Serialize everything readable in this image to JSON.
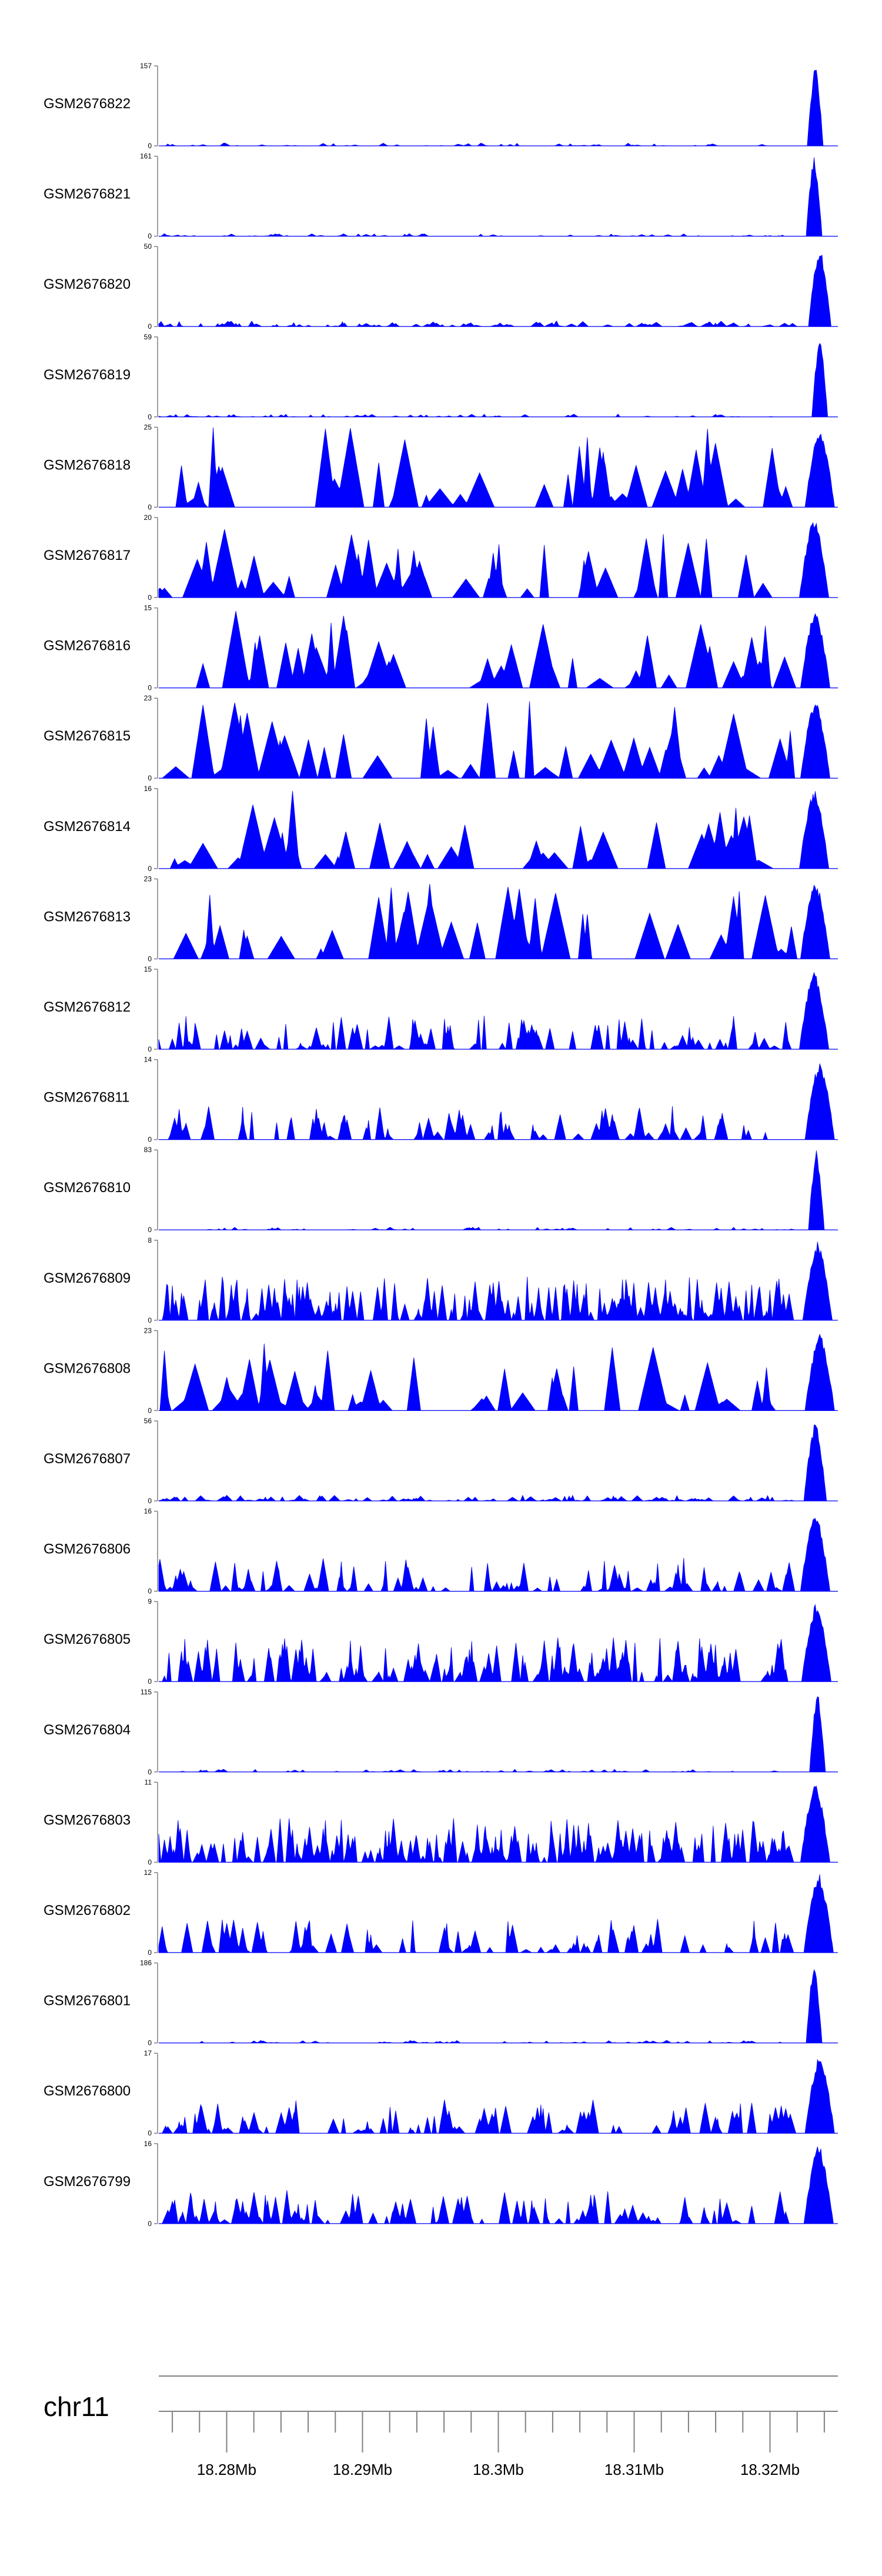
{
  "chart_data": {
    "type": "area",
    "title": "",
    "chromosome": "chr11",
    "fill_color": "#0000ff",
    "axis_color": "#808080",
    "x_range": [
      18275000,
      18325000
    ],
    "x_ticks": [
      18280000,
      18290000,
      18300000,
      18310000,
      18320000
    ],
    "x_tick_labels": [
      "18.28Mb",
      "18.29Mb",
      "18.3Mb",
      "18.31Mb",
      "18.32Mb"
    ],
    "minor_tick_step": 2000,
    "series": [
      {
        "name": "GSM2676822",
        "ymax": 157,
        "ymax_label": "157",
        "ymin_label": "0",
        "profile": "sparse",
        "seed": 22
      },
      {
        "name": "GSM2676821",
        "ymax": 161,
        "ymax_label": "161",
        "ymin_label": "0",
        "profile": "sparse",
        "seed": 21
      },
      {
        "name": "GSM2676820",
        "ymax": 50,
        "ymax_label": "50",
        "ymin_label": "0",
        "profile": "lowdense",
        "seed": 20
      },
      {
        "name": "GSM2676819",
        "ymax": 59,
        "ymax_label": "59",
        "ymin_label": "0",
        "profile": "sparse",
        "seed": 19
      },
      {
        "name": "GSM2676818",
        "ymax": 25,
        "ymax_label": "25",
        "ymin_label": "0",
        "profile": "triangles",
        "seed": 18
      },
      {
        "name": "GSM2676817",
        "ymax": 20,
        "ymax_label": "20",
        "ymin_label": "0",
        "profile": "triangles",
        "seed": 17
      },
      {
        "name": "GSM2676816",
        "ymax": 15,
        "ymax_label": "15",
        "ymin_label": "0",
        "profile": "triangles",
        "seed": 16
      },
      {
        "name": "GSM2676815",
        "ymax": 23,
        "ymax_label": "23",
        "ymin_label": "0",
        "profile": "triangles",
        "seed": 15
      },
      {
        "name": "GSM2676814",
        "ymax": 16,
        "ymax_label": "16",
        "ymin_label": "0",
        "profile": "triangles",
        "seed": 14
      },
      {
        "name": "GSM2676813",
        "ymax": 23,
        "ymax_label": "23",
        "ymin_label": "0",
        "profile": "triangles",
        "seed": 13
      },
      {
        "name": "GSM2676812",
        "ymax": 15,
        "ymax_label": "15",
        "ymin_label": "0",
        "profile": "medium",
        "seed": 12
      },
      {
        "name": "GSM2676811",
        "ymax": 14,
        "ymax_label": "14",
        "ymin_label": "0",
        "profile": "medium",
        "seed": 11
      },
      {
        "name": "GSM2676810",
        "ymax": 83,
        "ymax_label": "83",
        "ymin_label": "0",
        "profile": "sparse",
        "seed": 10
      },
      {
        "name": "GSM2676809",
        "ymax": 8,
        "ymax_label": "8",
        "ymin_label": "0",
        "profile": "dense",
        "seed": 9
      },
      {
        "name": "GSM2676808",
        "ymax": 23,
        "ymax_label": "23",
        "ymin_label": "0",
        "profile": "triangles",
        "seed": 8
      },
      {
        "name": "GSM2676807",
        "ymax": 56,
        "ymax_label": "56",
        "ymin_label": "0",
        "profile": "lowdense",
        "seed": 7
      },
      {
        "name": "GSM2676806",
        "ymax": 16,
        "ymax_label": "16",
        "ymin_label": "0",
        "profile": "medium",
        "seed": 6
      },
      {
        "name": "GSM2676805",
        "ymax": 9,
        "ymax_label": "9",
        "ymin_label": "0",
        "profile": "dense",
        "seed": 5
      },
      {
        "name": "GSM2676804",
        "ymax": 115,
        "ymax_label": "115",
        "ymin_label": "0",
        "profile": "sparse",
        "seed": 4
      },
      {
        "name": "GSM2676803",
        "ymax": 11,
        "ymax_label": "11",
        "ymin_label": "0",
        "profile": "dense",
        "seed": 3
      },
      {
        "name": "GSM2676802",
        "ymax": 12,
        "ymax_label": "12",
        "ymin_label": "0",
        "profile": "medium",
        "seed": 2
      },
      {
        "name": "GSM2676801",
        "ymax": 186,
        "ymax_label": "186",
        "ymin_label": "0",
        "profile": "sparse",
        "seed": 1
      },
      {
        "name": "GSM2676800",
        "ymax": 17,
        "ymax_label": "17",
        "ymin_label": "0",
        "profile": "medium",
        "seed": 100
      },
      {
        "name": "GSM2676799",
        "ymax": 16,
        "ymax_label": "16",
        "ymin_label": "0",
        "profile": "medium",
        "seed": 99
      }
    ]
  }
}
